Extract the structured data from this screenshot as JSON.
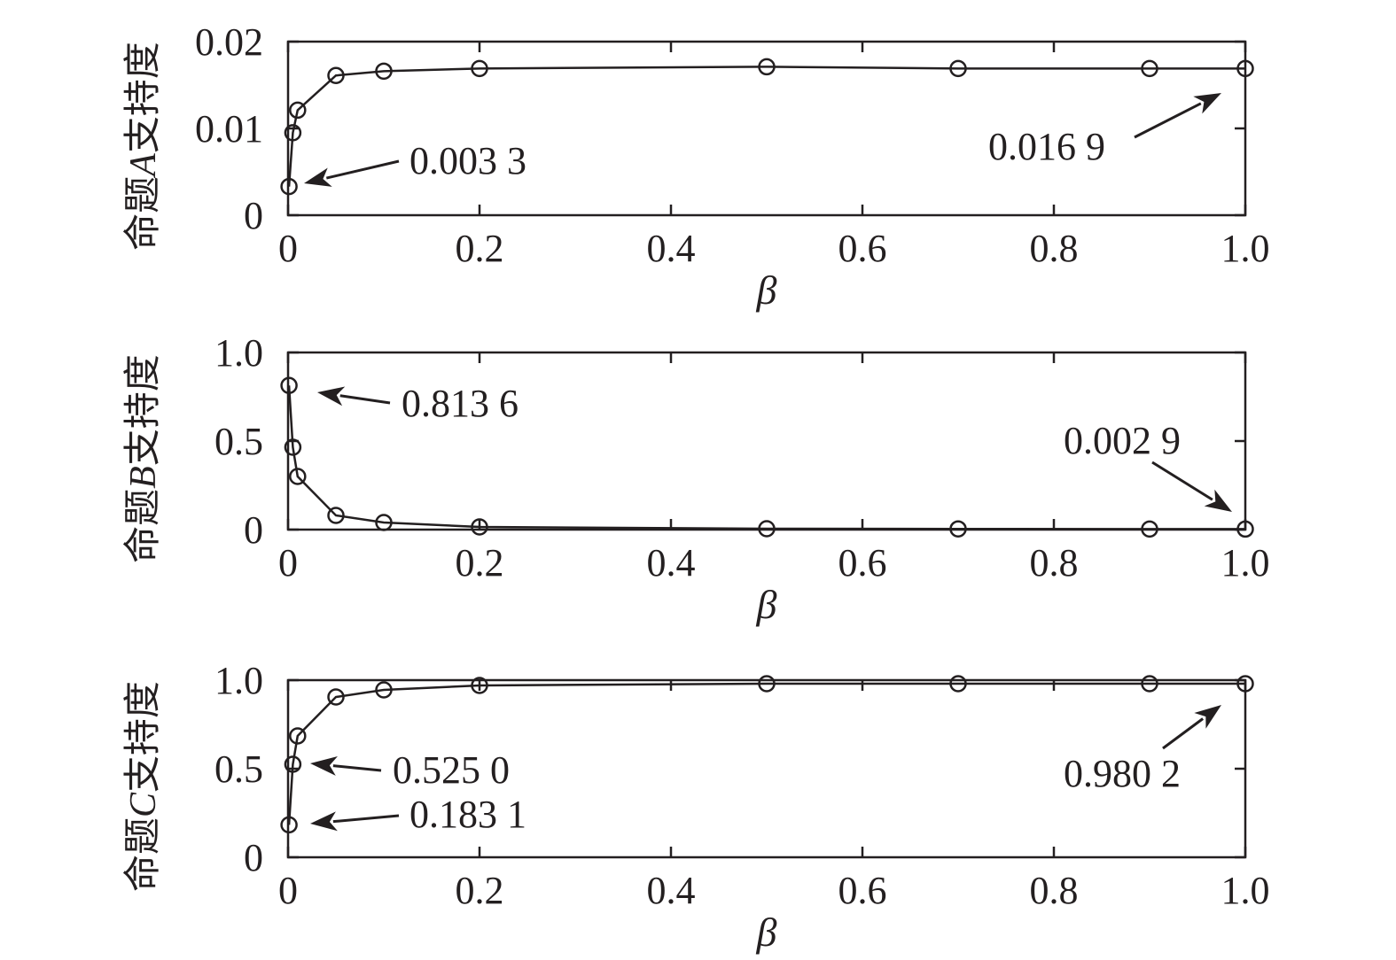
{
  "chart_data": [
    {
      "type": "line",
      "xlabel": "β",
      "ylabel": {
        "prefix": "命题",
        "var": "A",
        "suffix": "支持度"
      },
      "x": [
        0.001,
        0.005,
        0.01,
        0.05,
        0.1,
        0.2,
        0.5,
        0.7,
        0.9,
        1.0
      ],
      "y": [
        0.0033,
        0.0095,
        0.0121,
        0.0161,
        0.0166,
        0.0169,
        0.0171,
        0.0169,
        0.0169,
        0.0169
      ],
      "xlim": [
        0,
        1.0
      ],
      "ylim": [
        0,
        0.02
      ],
      "xticks": [
        "0",
        "0.2",
        "0.4",
        "0.6",
        "0.8",
        "1.0"
      ],
      "yticks": [
        {
          "v": 0,
          "label": "0"
        },
        {
          "v": 0.01,
          "label": "0.01"
        },
        {
          "v": 0.02,
          "label": "0.02"
        }
      ],
      "marker": "circle-open",
      "color": "#231f20",
      "grid": false,
      "annotations": [
        {
          "text": "0.003 3",
          "point": 0
        },
        {
          "text": "0.016 9",
          "point": 9
        }
      ]
    },
    {
      "type": "line",
      "xlabel": "β",
      "ylabel": {
        "prefix": "命题",
        "var": "B",
        "suffix": "支持度"
      },
      "x": [
        0.001,
        0.005,
        0.01,
        0.05,
        0.1,
        0.2,
        0.5,
        0.7,
        0.9,
        1.0
      ],
      "y": [
        0.8136,
        0.465,
        0.3,
        0.08,
        0.04,
        0.015,
        0.005,
        0.004,
        0.003,
        0.0029
      ],
      "xlim": [
        0,
        1.0
      ],
      "ylim": [
        0,
        1.0
      ],
      "xticks": [
        "0",
        "0.2",
        "0.4",
        "0.6",
        "0.8",
        "1.0"
      ],
      "yticks": [
        {
          "v": 0,
          "label": "0"
        },
        {
          "v": 0.5,
          "label": "0.5"
        },
        {
          "v": 1.0,
          "label": "1.0"
        }
      ],
      "marker": "circle-open",
      "color": "#231f20",
      "grid": false,
      "annotations": [
        {
          "text": "0.813 6",
          "point": 0
        },
        {
          "text": "0.002 9",
          "point": 9
        }
      ]
    },
    {
      "type": "line",
      "xlabel": "β",
      "ylabel": {
        "prefix": "命题",
        "var": "C",
        "suffix": "支持度"
      },
      "x": [
        0.001,
        0.005,
        0.01,
        0.05,
        0.1,
        0.2,
        0.5,
        0.7,
        0.9,
        1.0
      ],
      "y": [
        0.1831,
        0.525,
        0.685,
        0.905,
        0.945,
        0.97,
        0.98,
        0.98,
        0.98,
        0.9802
      ],
      "xlim": [
        0,
        1.0
      ],
      "ylim": [
        0,
        1.0
      ],
      "xticks": [
        "0",
        "0.2",
        "0.4",
        "0.6",
        "0.8",
        "1.0"
      ],
      "yticks": [
        {
          "v": 0,
          "label": "0"
        },
        {
          "v": 0.5,
          "label": "0.5"
        },
        {
          "v": 1.0,
          "label": "1.0"
        }
      ],
      "marker": "circle-open",
      "color": "#231f20",
      "grid": false,
      "annotations": [
        {
          "text": "0.525 0",
          "point": 1
        },
        {
          "text": "0.183 1",
          "point": 0
        },
        {
          "text": "0.980 2",
          "point": 9
        }
      ]
    }
  ]
}
